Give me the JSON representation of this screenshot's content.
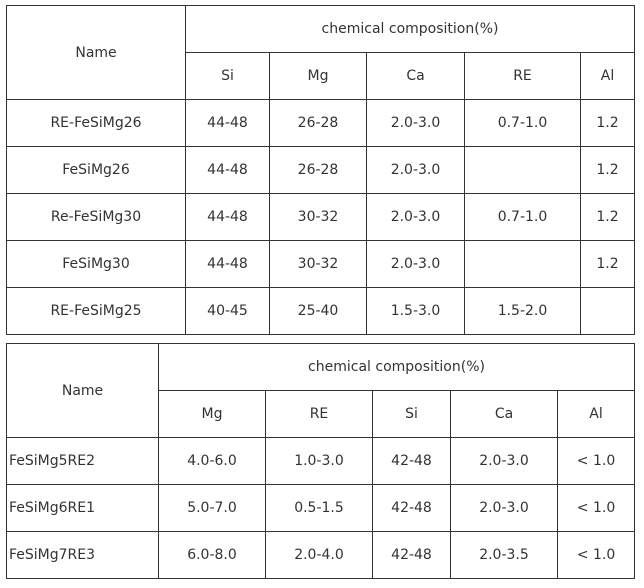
{
  "table1": {
    "name_header": "Name",
    "group_header": "chemical composition(%)",
    "columns": [
      "Si",
      "Mg",
      "Ca",
      "RE",
      "Al"
    ],
    "rows": [
      {
        "name": "RE-FeSiMg26",
        "values": [
          "44-48",
          "26-28",
          "2.0-3.0",
          "0.7-1.0",
          "1.2"
        ]
      },
      {
        "name": "FeSiMg26",
        "values": [
          "44-48",
          "26-28",
          "2.0-3.0",
          "",
          "1.2"
        ]
      },
      {
        "name": "Re-FeSiMg30",
        "values": [
          "44-48",
          "30-32",
          "2.0-3.0",
          "0.7-1.0",
          "1.2"
        ]
      },
      {
        "name": "FeSiMg30",
        "values": [
          "44-48",
          "30-32",
          "2.0-3.0",
          "",
          "1.2"
        ]
      },
      {
        "name": "RE-FeSiMg25",
        "values": [
          "40-45",
          "25-40",
          "1.5-3.0",
          "1.5-2.0",
          ""
        ]
      }
    ]
  },
  "table2": {
    "name_header": "Name",
    "group_header": "chemical composition(%)",
    "columns": [
      "Mg",
      "RE",
      "Si",
      "Ca",
      "Al"
    ],
    "rows": [
      {
        "name": "FeSiMg5RE2",
        "values": [
          "4.0-6.0",
          "1.0-3.0",
          "42-48",
          "2.0-3.0",
          "< 1.0"
        ]
      },
      {
        "name": "FeSiMg6RE1",
        "values": [
          "5.0-7.0",
          "0.5-1.5",
          "42-48",
          "2.0-3.0",
          "< 1.0"
        ]
      },
      {
        "name": "FeSiMg7RE3",
        "values": [
          "6.0-8.0",
          "2.0-4.0",
          "42-48",
          "2.0-3.5",
          "< 1.0"
        ]
      }
    ]
  }
}
